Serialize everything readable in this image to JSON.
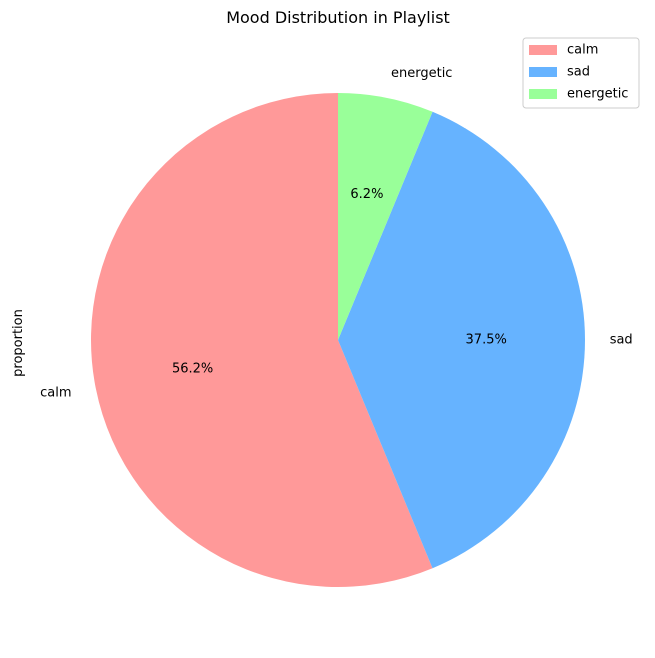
{
  "chart_data": {
    "type": "pie",
    "title": "Mood Distribution in Playlist",
    "ylabel": "proportion",
    "slices": [
      {
        "label": "calm",
        "value": 56.25,
        "pct_label": "56.2%",
        "color": "#ff9999"
      },
      {
        "label": "sad",
        "value": 37.5,
        "pct_label": "37.5%",
        "color": "#66b3ff"
      },
      {
        "label": "energetic",
        "value": 6.25,
        "pct_label": "6.2%",
        "color": "#99ff99"
      }
    ],
    "start_angle_deg": 90,
    "direction": "counterclockwise",
    "legend": {
      "position": "top-right",
      "items": [
        "calm",
        "sad",
        "energetic"
      ]
    }
  }
}
